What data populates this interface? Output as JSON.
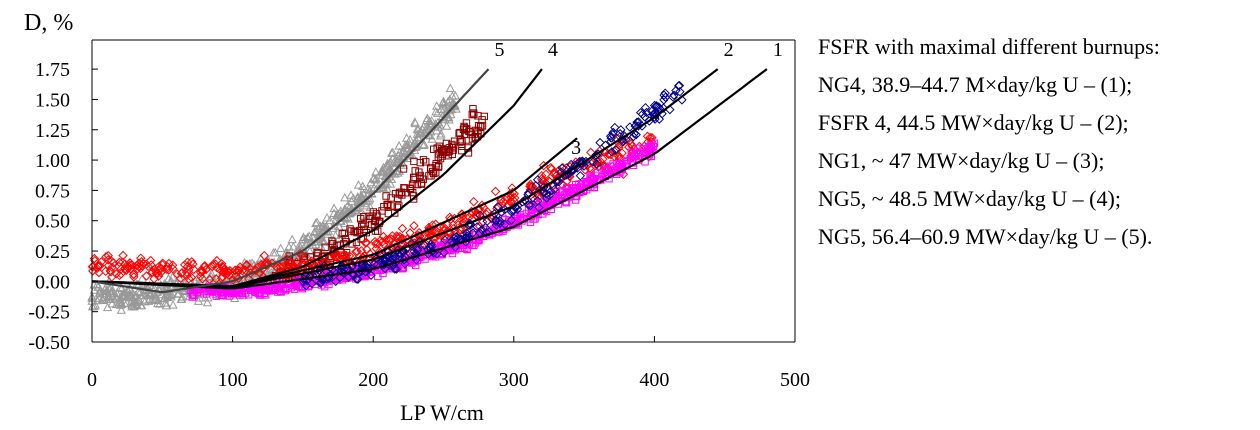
{
  "chart_data": {
    "type": "scatter",
    "ylabel": "D, %",
    "xlabel": "LP W/cm",
    "xlim": [
      0,
      500
    ],
    "ylim": [
      -0.5,
      1.75
    ],
    "xticks": [
      0,
      100,
      200,
      300,
      400,
      500
    ],
    "yticks": [
      -0.5,
      -0.25,
      0.0,
      0.25,
      0.5,
      0.75,
      1.0,
      1.25,
      1.5,
      1.75
    ],
    "ytick_labels": [
      "-0.50",
      "-0.25",
      "0.00",
      "0.25",
      "0.50",
      "0.75",
      "1.00",
      "1.25",
      "1.50",
      "1.75"
    ],
    "xtick_labels": [
      "0",
      "100",
      "200",
      "300",
      "400",
      "500"
    ],
    "grid": false,
    "legend_position": "right",
    "legend_title": "FSFR with maximal different burnups:",
    "series": [
      {
        "name": "NG4, 38.9–44.7 M×day/kg U  – (1);",
        "label": "1",
        "color": "#ff00ff",
        "marker": "square",
        "x": [
          70,
          120,
          170,
          220,
          270,
          320,
          360,
          400
        ],
        "y": [
          -0.08,
          -0.07,
          0.02,
          0.15,
          0.34,
          0.6,
          0.85,
          1.12
        ]
      },
      {
        "name": "FSFR 4, 44.5 MW×day/kg U  – (2);",
        "label": "2",
        "color": "#00008b",
        "marker": "diamond",
        "x": [
          150,
          200,
          250,
          300,
          340,
          370,
          400,
          420
        ],
        "y": [
          0.0,
          0.12,
          0.3,
          0.58,
          0.9,
          1.15,
          1.4,
          1.6
        ]
      },
      {
        "name": "NG1, ~ 47 MW×day/kg U  – (3);",
        "label": "3",
        "color": "#ff0000",
        "marker": "diamond",
        "x": [
          0,
          50,
          100,
          150,
          200,
          250,
          300,
          350,
          400
        ],
        "y": [
          0.12,
          0.1,
          0.08,
          0.1,
          0.22,
          0.42,
          0.7,
          0.95,
          1.15
        ]
      },
      {
        "name": "NG5, ~ 48.5 MW×day/kg U  – (4);",
        "label": "4",
        "color": "#8b0000",
        "marker": "square",
        "x": [
          130,
          170,
          200,
          230,
          260,
          280
        ],
        "y": [
          0.05,
          0.2,
          0.5,
          0.85,
          1.15,
          1.35
        ]
      },
      {
        "name": "NG5, 56.4–60.9 MW×day/kg U  – (5).",
        "label": "5",
        "color": "#999999",
        "marker": "triangle",
        "x": [
          0,
          50,
          100,
          150,
          200,
          230,
          260
        ],
        "y": [
          -0.12,
          -0.1,
          -0.03,
          0.25,
          0.75,
          1.15,
          1.5
        ]
      }
    ],
    "fit_curves": [
      {
        "label": "1",
        "x": [
          0,
          100,
          200,
          300,
          400,
          480
        ],
        "y": [
          0.0,
          -0.06,
          0.1,
          0.45,
          1.05,
          1.75
        ]
      },
      {
        "label": "2",
        "x": [
          0,
          100,
          200,
          300,
          400,
          445
        ],
        "y": [
          0.0,
          -0.05,
          0.18,
          0.62,
          1.35,
          1.75
        ]
      },
      {
        "label": "3",
        "x": [
          0,
          100,
          200,
          300,
          345
        ],
        "y": [
          0.0,
          -0.04,
          0.22,
          0.75,
          1.18
        ]
      },
      {
        "label": "4",
        "x": [
          0,
          100,
          150,
          200,
          250,
          300,
          320
        ],
        "y": [
          0.0,
          -0.04,
          0.12,
          0.42,
          0.88,
          1.45,
          1.75
        ]
      },
      {
        "label": "5",
        "x": [
          0,
          50,
          100,
          150,
          200,
          250,
          282
        ],
        "y": [
          0.0,
          -0.09,
          0.0,
          0.25,
          0.72,
          1.35,
          1.75
        ]
      }
    ]
  }
}
